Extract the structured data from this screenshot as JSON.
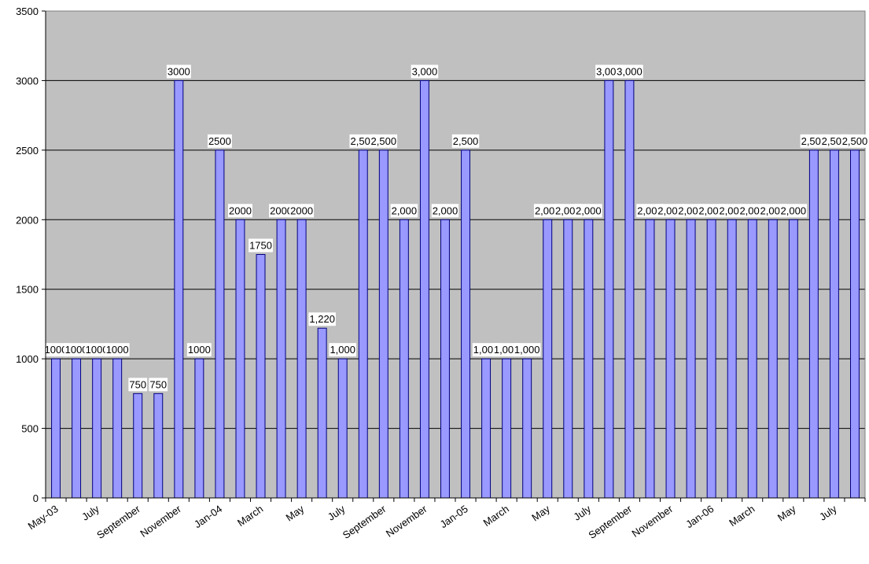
{
  "chart_data": {
    "type": "bar",
    "title": "",
    "xlabel": "",
    "ylabel": "",
    "ylim": [
      0,
      3500
    ],
    "yticks": [
      "0",
      "500",
      "1000",
      "1500",
      "2000",
      "2500",
      "3000",
      "3500"
    ],
    "grid": true,
    "legend": "none",
    "colors": {
      "plot_background": "#c0c0c0",
      "bar_fill": "#9999ff",
      "bar_stroke": "#000080",
      "gridline": "#000000",
      "label_background": "#ffffff"
    },
    "x_tick_labels": [
      "May-03",
      "July",
      "September",
      "November",
      "Jan-04",
      "March",
      "May",
      "July",
      "September",
      "November",
      "Jan-05",
      "March",
      "May",
      "July",
      "September",
      "November",
      "Jan-06",
      "March",
      "May",
      "July"
    ],
    "categories": [
      "May-03",
      "Jun-03",
      "Jul-03",
      "Aug-03",
      "Sep-03",
      "Oct-03",
      "Nov-03",
      "Dec-03",
      "Jan-04",
      "Feb-04",
      "Mar-04",
      "Apr-04",
      "May-04",
      "Jun-04",
      "Jul-04",
      "Aug-04",
      "Sep-04",
      "Oct-04",
      "Nov-04",
      "Dec-04",
      "Jan-05",
      "Feb-05",
      "Mar-05",
      "Apr-05",
      "May-05",
      "Jun-05",
      "Jul-05",
      "Aug-05",
      "Sep-05",
      "Oct-05",
      "Nov-05",
      "Dec-05",
      "Jan-06",
      "Feb-06",
      "Mar-06",
      "Apr-06",
      "May-06",
      "Jun-06",
      "Jul-06",
      "Aug-06"
    ],
    "values": [
      1000,
      1000,
      1000,
      1000,
      750,
      750,
      3000,
      1000,
      2500,
      2000,
      1750,
      2000,
      2000,
      1220,
      1000,
      2500,
      2500,
      2000,
      3000,
      2000,
      2500,
      1000,
      1000,
      1000,
      2000,
      2000,
      2000,
      3000,
      3000,
      2000,
      2000,
      2000,
      2000,
      2000,
      2000,
      2000,
      2000,
      2500,
      2500,
      2500
    ],
    "data_labels": [
      "1000",
      "1000",
      "1000",
      "1000",
      "750",
      "750",
      "3000",
      "1000",
      "2500",
      "2000",
      "1750",
      "2000",
      "2000",
      "1,220",
      "1,000",
      "2,500",
      "2,500",
      "2,000",
      "3,000",
      "2,000",
      "2,500",
      "1,000",
      "1,000",
      "1,000",
      "2,000",
      "2,000",
      "2,000",
      "3,000",
      "3,000",
      "2,000",
      "2,000",
      "2,000",
      "2,000",
      "2,000",
      "2,000",
      "2,000",
      "2,000",
      "2,500",
      "2,500",
      "2,500"
    ]
  }
}
